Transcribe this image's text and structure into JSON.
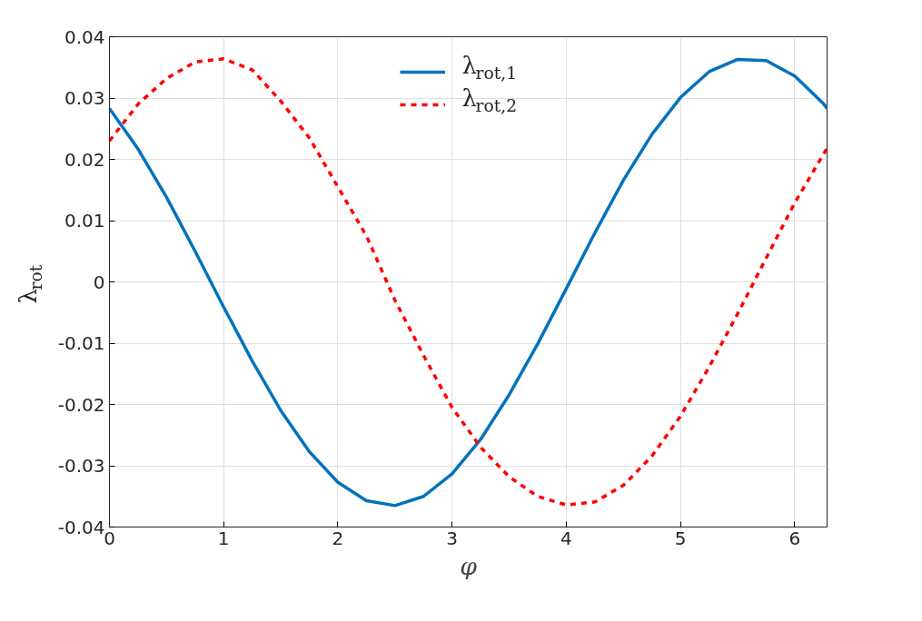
{
  "chart_data": {
    "type": "line",
    "xlabel": "φ",
    "ylabel": "λ$_{rot}$",
    "x": [
      0,
      0.25,
      0.5,
      0.75,
      1.0,
      1.25,
      1.5,
      1.75,
      2.0,
      2.25,
      2.5,
      2.75,
      3.0,
      3.25,
      3.5,
      3.75,
      4.0,
      4.25,
      4.5,
      4.75,
      5.0,
      5.25,
      5.5,
      5.75,
      6.0,
      6.25,
      6.283
    ],
    "series": [
      {
        "name": "λ$_{rot,1}$",
        "color": "#0072bd",
        "line_style": "solid",
        "values": [
          0.0283,
          0.0217,
          0.0138,
          0.005,
          -0.0041,
          -0.0129,
          -0.021,
          -0.0277,
          -0.0327,
          -0.0357,
          -0.0365,
          -0.035,
          -0.0313,
          -0.0257,
          -0.0184,
          -0.0101,
          -0.0011,
          0.008,
          0.0166,
          0.0241,
          0.0301,
          0.0343,
          0.0363,
          0.0361,
          0.0336,
          0.0291,
          0.0283
        ]
      },
      {
        "name": "λ$_{rot,2}$",
        "color": "#ff0000",
        "line_style": "dashed",
        "values": [
          0.023,
          0.029,
          0.0332,
          0.0359,
          0.0364,
          0.0346,
          0.0295,
          0.0235,
          0.0155,
          0.0075,
          -0.003,
          -0.012,
          -0.0205,
          -0.027,
          -0.0318,
          -0.035,
          -0.0364,
          -0.0359,
          -0.0332,
          -0.0284,
          -0.0219,
          -0.0139,
          -0.0052,
          0.0039,
          0.0129,
          0.0208,
          0.0218
        ]
      }
    ],
    "xlim": [
      0,
      6.283
    ],
    "ylim": [
      -0.04,
      0.04
    ],
    "xticks": [
      0,
      1,
      2,
      3,
      4,
      5,
      6
    ],
    "yticks": [
      -0.04,
      -0.03,
      -0.02,
      -0.01,
      0,
      0.01,
      0.02,
      0.03,
      0.04
    ],
    "grid": true,
    "legend": "top"
  }
}
